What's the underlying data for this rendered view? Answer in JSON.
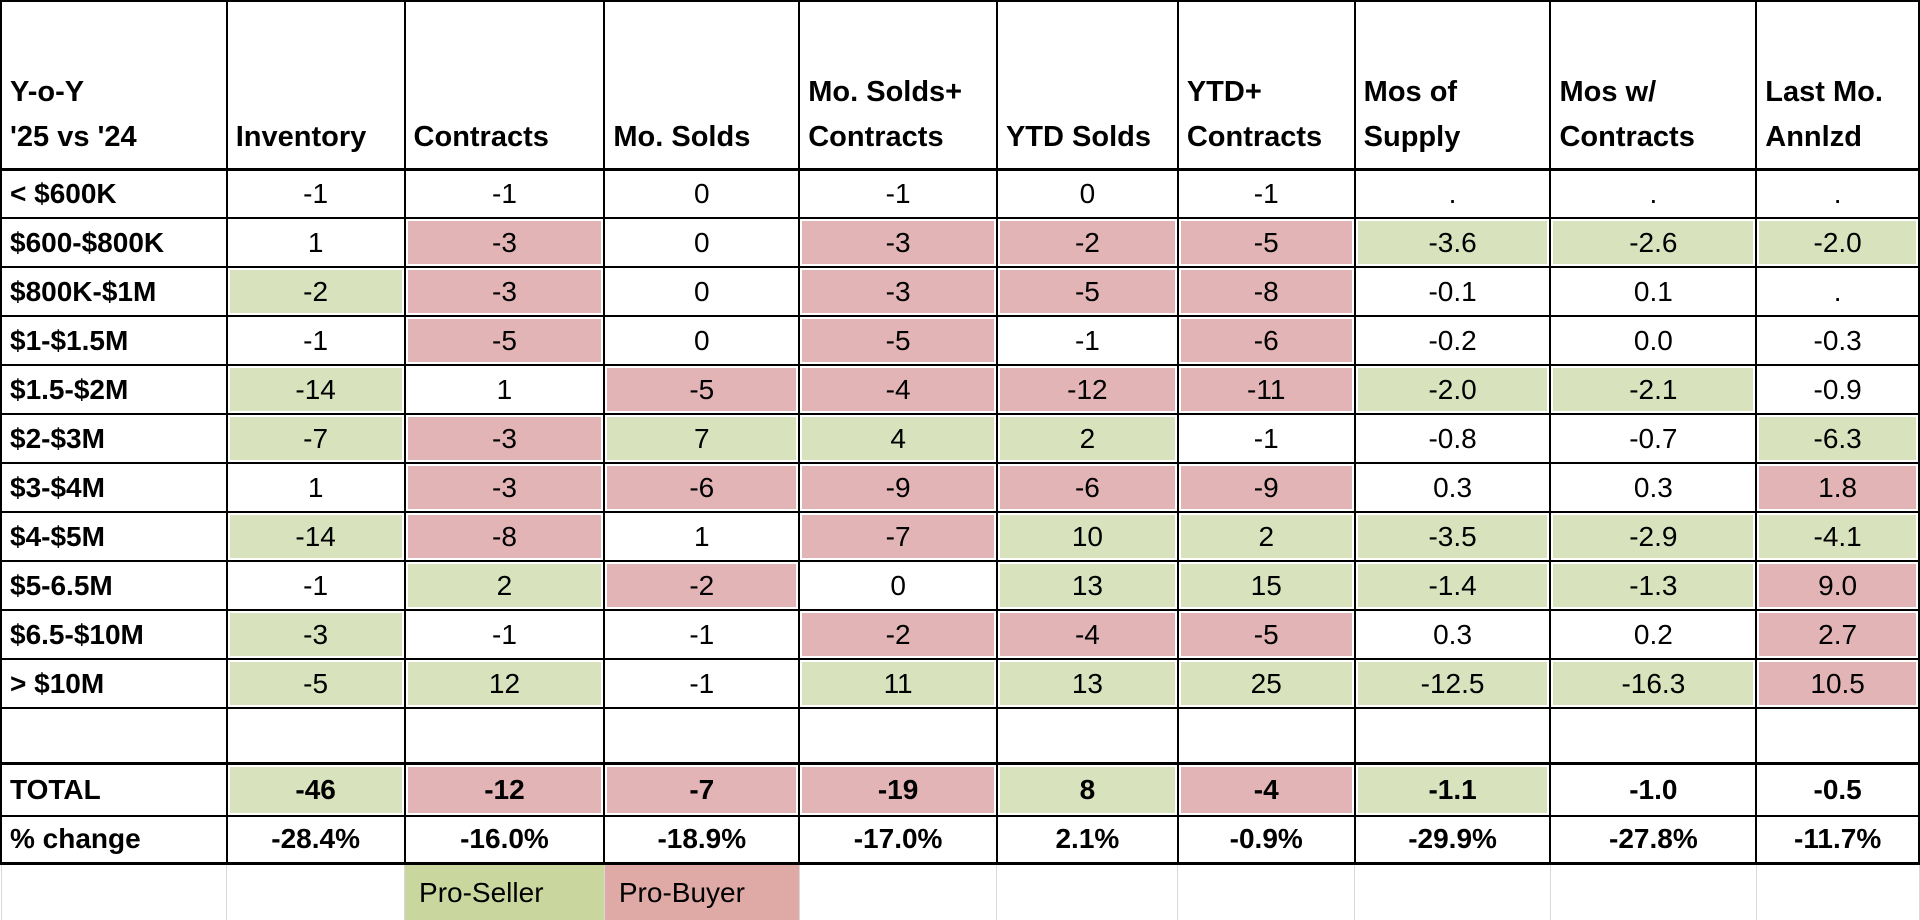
{
  "title": "Y-o-Y '25 vs '24 real estate comparison table",
  "colors": {
    "pro_seller_green": "#d8e2bd",
    "pro_buyer_pink": "#e2b4b6",
    "legend_green": "#c9d79e",
    "legend_pink": "#dfa9a6",
    "grid_black": "#000000",
    "gridline_gray": "#d9d9d9"
  },
  "table": {
    "corner_label": "Y-o-Y\n'25 vs '24",
    "columns": [
      {
        "label": "Inventory"
      },
      {
        "label": "Contracts"
      },
      {
        "label": "Mo. Solds"
      },
      {
        "label": "Mo. Solds+\nContracts"
      },
      {
        "label": "YTD Solds"
      },
      {
        "label": "YTD+\nContracts"
      },
      {
        "label": "Mos of\nSupply"
      },
      {
        "label": "Mos w/\nContracts"
      },
      {
        "label": "Last Mo.\nAnnlzd"
      }
    ],
    "rows": [
      {
        "label": "< $600K",
        "cells": [
          {
            "v": "-1",
            "fill": "none"
          },
          {
            "v": "-1",
            "fill": "none"
          },
          {
            "v": "0",
            "fill": "none"
          },
          {
            "v": "-1",
            "fill": "none"
          },
          {
            "v": "0",
            "fill": "none"
          },
          {
            "v": "-1",
            "fill": "none"
          },
          {
            "v": ".",
            "fill": "none"
          },
          {
            "v": ".",
            "fill": "none"
          },
          {
            "v": ".",
            "fill": "none"
          }
        ]
      },
      {
        "label": "$600-$800K",
        "cells": [
          {
            "v": "1",
            "fill": "none"
          },
          {
            "v": "-3",
            "fill": "pink"
          },
          {
            "v": "0",
            "fill": "none"
          },
          {
            "v": "-3",
            "fill": "pink"
          },
          {
            "v": "-2",
            "fill": "pink"
          },
          {
            "v": "-5",
            "fill": "pink"
          },
          {
            "v": "-3.6",
            "fill": "green"
          },
          {
            "v": "-2.6",
            "fill": "green"
          },
          {
            "v": "-2.0",
            "fill": "green"
          }
        ]
      },
      {
        "label": "$800K-$1M",
        "cells": [
          {
            "v": "-2",
            "fill": "green"
          },
          {
            "v": "-3",
            "fill": "pink"
          },
          {
            "v": "0",
            "fill": "none"
          },
          {
            "v": "-3",
            "fill": "pink"
          },
          {
            "v": "-5",
            "fill": "pink"
          },
          {
            "v": "-8",
            "fill": "pink"
          },
          {
            "v": "-0.1",
            "fill": "none"
          },
          {
            "v": "0.1",
            "fill": "none"
          },
          {
            "v": ".",
            "fill": "none"
          }
        ]
      },
      {
        "label": "$1-$1.5M",
        "cells": [
          {
            "v": "-1",
            "fill": "none"
          },
          {
            "v": "-5",
            "fill": "pink"
          },
          {
            "v": "0",
            "fill": "none"
          },
          {
            "v": "-5",
            "fill": "pink"
          },
          {
            "v": "-1",
            "fill": "none"
          },
          {
            "v": "-6",
            "fill": "pink"
          },
          {
            "v": "-0.2",
            "fill": "none"
          },
          {
            "v": "0.0",
            "fill": "none"
          },
          {
            "v": "-0.3",
            "fill": "none"
          }
        ]
      },
      {
        "label": "$1.5-$2M",
        "cells": [
          {
            "v": "-14",
            "fill": "green"
          },
          {
            "v": "1",
            "fill": "none"
          },
          {
            "v": "-5",
            "fill": "pink"
          },
          {
            "v": "-4",
            "fill": "pink"
          },
          {
            "v": "-12",
            "fill": "pink"
          },
          {
            "v": "-11",
            "fill": "pink"
          },
          {
            "v": "-2.0",
            "fill": "green"
          },
          {
            "v": "-2.1",
            "fill": "green"
          },
          {
            "v": "-0.9",
            "fill": "none"
          }
        ]
      },
      {
        "label": "$2-$3M",
        "cells": [
          {
            "v": "-7",
            "fill": "green"
          },
          {
            "v": "-3",
            "fill": "pink"
          },
          {
            "v": "7",
            "fill": "green"
          },
          {
            "v": "4",
            "fill": "green"
          },
          {
            "v": "2",
            "fill": "green"
          },
          {
            "v": "-1",
            "fill": "none"
          },
          {
            "v": "-0.8",
            "fill": "none"
          },
          {
            "v": "-0.7",
            "fill": "none"
          },
          {
            "v": "-6.3",
            "fill": "green"
          }
        ]
      },
      {
        "label": "$3-$4M",
        "cells": [
          {
            "v": "1",
            "fill": "none"
          },
          {
            "v": "-3",
            "fill": "pink"
          },
          {
            "v": "-6",
            "fill": "pink"
          },
          {
            "v": "-9",
            "fill": "pink"
          },
          {
            "v": "-6",
            "fill": "pink"
          },
          {
            "v": "-9",
            "fill": "pink"
          },
          {
            "v": "0.3",
            "fill": "none"
          },
          {
            "v": "0.3",
            "fill": "none"
          },
          {
            "v": "1.8",
            "fill": "pink"
          }
        ]
      },
      {
        "label": "$4-$5M",
        "cells": [
          {
            "v": "-14",
            "fill": "green"
          },
          {
            "v": "-8",
            "fill": "pink"
          },
          {
            "v": "1",
            "fill": "none"
          },
          {
            "v": "-7",
            "fill": "pink"
          },
          {
            "v": "10",
            "fill": "green"
          },
          {
            "v": "2",
            "fill": "green"
          },
          {
            "v": "-3.5",
            "fill": "green"
          },
          {
            "v": "-2.9",
            "fill": "green"
          },
          {
            "v": "-4.1",
            "fill": "green"
          }
        ]
      },
      {
        "label": "$5-6.5M",
        "cells": [
          {
            "v": "-1",
            "fill": "none"
          },
          {
            "v": "2",
            "fill": "green"
          },
          {
            "v": "-2",
            "fill": "pink"
          },
          {
            "v": "0",
            "fill": "none"
          },
          {
            "v": "13",
            "fill": "green"
          },
          {
            "v": "15",
            "fill": "green"
          },
          {
            "v": "-1.4",
            "fill": "green"
          },
          {
            "v": "-1.3",
            "fill": "green"
          },
          {
            "v": "9.0",
            "fill": "pink"
          }
        ]
      },
      {
        "label": "$6.5-$10M",
        "cells": [
          {
            "v": "-3",
            "fill": "green"
          },
          {
            "v": "-1",
            "fill": "none"
          },
          {
            "v": "-1",
            "fill": "none"
          },
          {
            "v": "-2",
            "fill": "pink"
          },
          {
            "v": "-4",
            "fill": "pink"
          },
          {
            "v": "-5",
            "fill": "pink"
          },
          {
            "v": "0.3",
            "fill": "none"
          },
          {
            "v": "0.2",
            "fill": "none"
          },
          {
            "v": "2.7",
            "fill": "pink"
          }
        ]
      },
      {
        "label": "> $10M",
        "cells": [
          {
            "v": "-5",
            "fill": "green"
          },
          {
            "v": "12",
            "fill": "green"
          },
          {
            "v": "-1",
            "fill": "none"
          },
          {
            "v": "11",
            "fill": "green"
          },
          {
            "v": "13",
            "fill": "green"
          },
          {
            "v": "25",
            "fill": "green"
          },
          {
            "v": "-12.5",
            "fill": "green"
          },
          {
            "v": "-16.3",
            "fill": "green"
          },
          {
            "v": "10.5",
            "fill": "pink"
          }
        ]
      }
    ],
    "blank_row": {
      "label": "",
      "cells": [
        "",
        "",
        "",
        "",
        "",
        "",
        "",
        "",
        ""
      ]
    },
    "total_row": {
      "label": "TOTAL",
      "cells": [
        {
          "v": "-46",
          "fill": "green"
        },
        {
          "v": "-12",
          "fill": "pink"
        },
        {
          "v": "-7",
          "fill": "pink"
        },
        {
          "v": "-19",
          "fill": "pink"
        },
        {
          "v": "8",
          "fill": "green"
        },
        {
          "v": "-4",
          "fill": "pink"
        },
        {
          "v": "-1.1",
          "fill": "green"
        },
        {
          "v": "-1.0",
          "fill": "none"
        },
        {
          "v": "-0.5",
          "fill": "none"
        }
      ]
    },
    "pct_change_row": {
      "label": "% change",
      "cells": [
        {
          "v": "-28.4%",
          "fill": "none"
        },
        {
          "v": "-16.0%",
          "fill": "none"
        },
        {
          "v": "-18.9%",
          "fill": "none"
        },
        {
          "v": "-17.0%",
          "fill": "none"
        },
        {
          "v": "2.1%",
          "fill": "none"
        },
        {
          "v": "-0.9%",
          "fill": "none"
        },
        {
          "v": "-29.9%",
          "fill": "none"
        },
        {
          "v": "-27.8%",
          "fill": "none"
        },
        {
          "v": "-11.7%",
          "fill": "none"
        }
      ]
    },
    "legend": {
      "pro_seller_label": "Pro-Seller",
      "pro_buyer_label": "Pro-Buyer"
    }
  }
}
